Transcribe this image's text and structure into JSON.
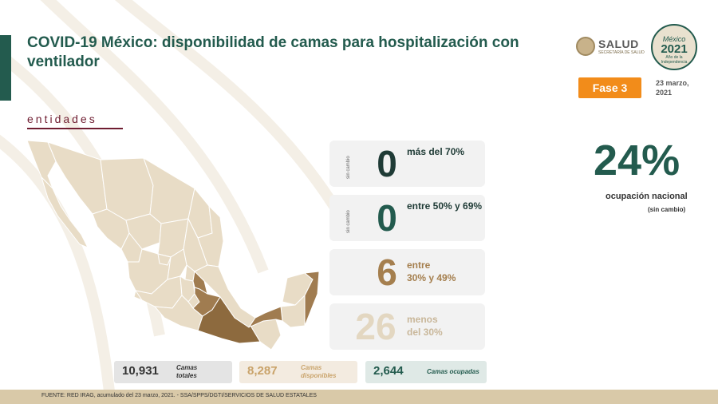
{
  "header": {
    "title": "COVID-19 México: disponibilidad de camas para hospitalización con ventilador",
    "section_label": "entidades"
  },
  "logos": {
    "salud_name": "SALUD",
    "salud_sub": "SECRETARÍA DE SALUD",
    "year_logo_line1": "México",
    "year_logo_line2": "2021",
    "year_logo_line3": "Año de la Independencia"
  },
  "phase": {
    "label": "Fase 3",
    "date_line1": "23 marzo,",
    "date_line2": "2021"
  },
  "occupancy_cards": [
    {
      "side_note": "sin cambio",
      "value": "0",
      "label_line1": "más del 70%",
      "label_line2": "",
      "bg": "#f2f2f2",
      "num_color": "#1f3b36",
      "label_color": "#1f3b36"
    },
    {
      "side_note": "sin cambio",
      "value": "0",
      "label_line1": "entre 50% y 69%",
      "label_line2": "",
      "bg": "#f2f2f2",
      "num_color": "#235b4e",
      "label_color": "#1f3b36"
    },
    {
      "side_note": "",
      "value": "6",
      "label_line1": "entre",
      "label_line2": "30% y 49%",
      "bg": "#f2f2f2",
      "num_color": "#a57f4e",
      "label_color": "#a57f4e"
    },
    {
      "side_note": "",
      "value": "26",
      "label_line1": "menos",
      "label_line2": "del 30%",
      "bg": "#f2f2f2",
      "num_color": "#e3d7c1",
      "label_color": "#c9b79a"
    }
  ],
  "national": {
    "percent": "24%",
    "label": "ocupación nacional",
    "change": "(sin cambio)"
  },
  "stats": [
    {
      "value": "10,931",
      "label": "Camas totales",
      "bg": "#e4e4e4",
      "color": "#333333",
      "label_color": "#333333"
    },
    {
      "value": "8,287",
      "label": "Camas disponibles",
      "bg": "#f3ebe0",
      "color": "#c9a36a",
      "label_color": "#c9a36a"
    },
    {
      "value": "2,644",
      "label": "Camas ocupadas",
      "bg": "#dfe9e6",
      "color": "#235b4e",
      "label_color": "#235b4e"
    }
  ],
  "footer": {
    "source": "FUENTE: RED IRAG, acumulado del 23 marzo, 2021. - SSA/SPPS/DGTI/SERVICIOS DE SALUD ESTATALES"
  },
  "colors": {
    "brand_green": "#235b4e",
    "brand_maroon": "#6f1d31",
    "map_light": "#e8dcc6",
    "map_mid": "#a07c50",
    "map_dark": "#8d6a3e",
    "phase_orange": "#f28c1a"
  }
}
